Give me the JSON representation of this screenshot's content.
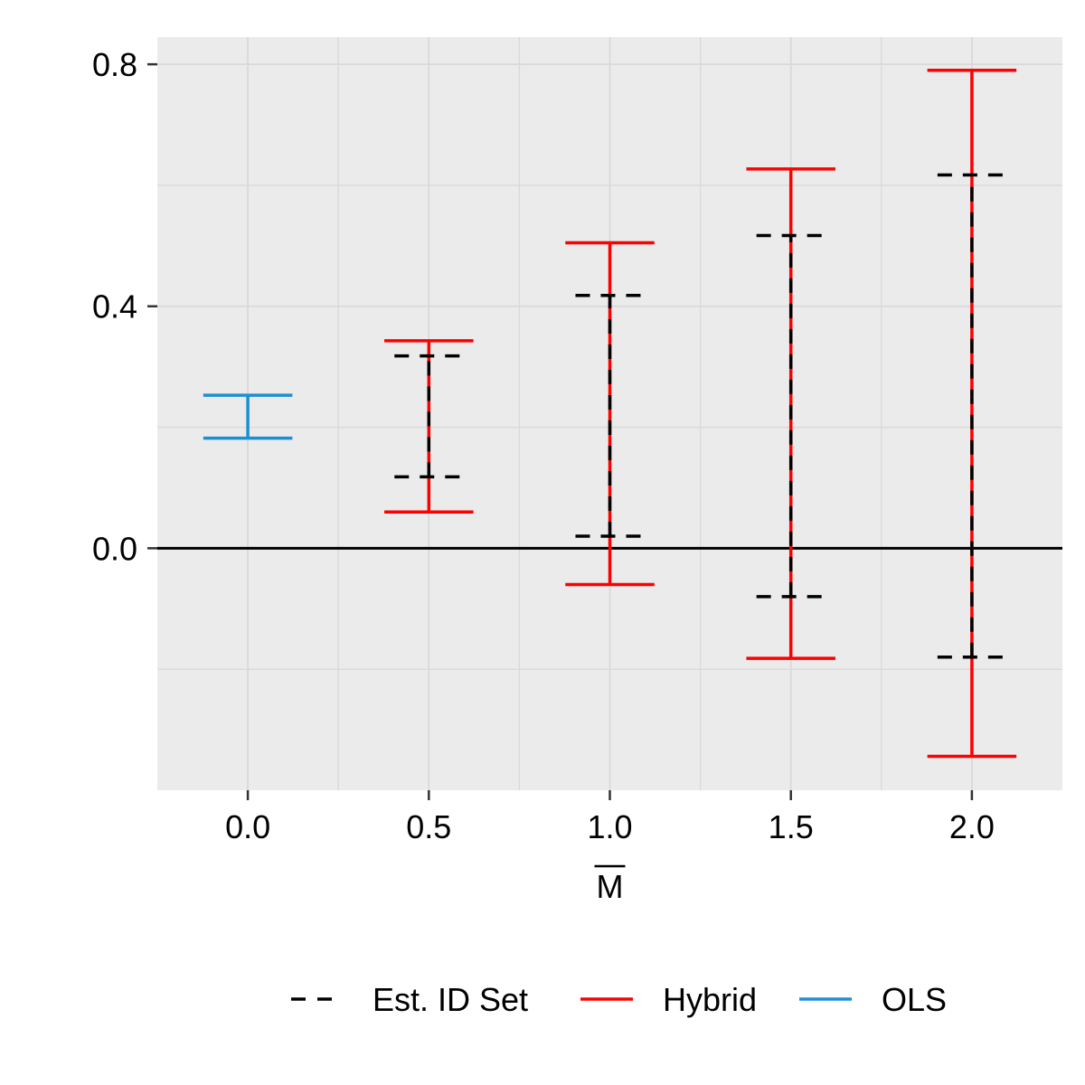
{
  "chart_data": {
    "type": "errorbar",
    "xlabel": "M",
    "xlabel_overline": true,
    "ylabel": "",
    "xlim": [
      -0.25,
      2.25
    ],
    "ylim": [
      -0.4,
      0.845
    ],
    "x_ticks": [
      0.0,
      0.5,
      1.0,
      1.5,
      2.0
    ],
    "x_tick_labels": [
      "0.0",
      "0.5",
      "1.0",
      "1.5",
      "2.0"
    ],
    "y_ticks": [
      0.0,
      0.4,
      0.8
    ],
    "y_tick_labels": [
      "0.0",
      "0.4",
      "0.8"
    ],
    "y_minor_gridlines": [
      -0.2,
      0.2,
      0.6
    ],
    "x_minor_gridlines": [
      0.25,
      0.75,
      1.25,
      1.75
    ],
    "reference_line_y": 0,
    "grid": true,
    "panel_background": "#EBEBEB",
    "legend_position": "bottom",
    "legend_order": [
      "Est. ID Set",
      "Hybrid",
      "OLS"
    ],
    "series": [
      {
        "name": "Est. ID Set",
        "color": "#000000",
        "linestyle": "dashed",
        "points": [
          {
            "x": 0.5,
            "lower": 0.118,
            "upper": 0.318
          },
          {
            "x": 1.0,
            "lower": 0.02,
            "upper": 0.418
          },
          {
            "x": 1.5,
            "lower": -0.08,
            "upper": 0.517
          },
          {
            "x": 2.0,
            "lower": -0.18,
            "upper": 0.617
          }
        ]
      },
      {
        "name": "Hybrid",
        "color": "#FF0000",
        "linestyle": "solid",
        "points": [
          {
            "x": 0.5,
            "lower": 0.06,
            "upper": 0.343
          },
          {
            "x": 1.0,
            "lower": -0.06,
            "upper": 0.505
          },
          {
            "x": 1.5,
            "lower": -0.182,
            "upper": 0.627
          },
          {
            "x": 2.0,
            "lower": -0.344,
            "upper": 0.79
          }
        ]
      },
      {
        "name": "OLS",
        "color": "#1B8FD6",
        "linestyle": "solid",
        "points": [
          {
            "x": 0.0,
            "lower": 0.182,
            "upper": 0.253
          }
        ]
      }
    ]
  }
}
